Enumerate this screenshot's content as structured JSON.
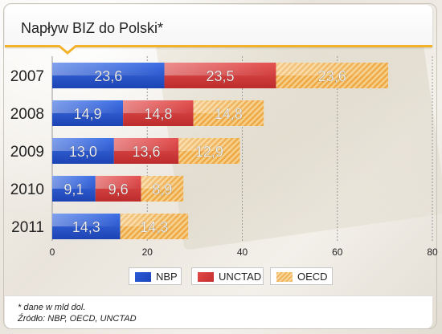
{
  "title": "Napływ BIZ do Polski*",
  "footnote": "* dane w mld dol.",
  "source": "Źródło: NBP, OECD, UNCTAD",
  "colors": {
    "NBP": "#2a5bd7",
    "UNCTAD": "#d83c3c",
    "OECD": "#f0b35a",
    "accent": "#f2b22a"
  },
  "chart_data": {
    "type": "bar",
    "orientation": "horizontal",
    "stacked": true,
    "categories": [
      "2007",
      "2008",
      "2009",
      "2010",
      "2011"
    ],
    "series": [
      {
        "name": "NBP",
        "values": [
          23.6,
          14.9,
          13.0,
          9.1,
          14.3
        ],
        "labels": [
          "23,6",
          "14,9",
          "13,0",
          "9,1",
          "14,3"
        ]
      },
      {
        "name": "UNCTAD",
        "values": [
          23.5,
          14.8,
          13.6,
          9.6,
          null
        ],
        "labels": [
          "23,5",
          "14,8",
          "13,6",
          "9,6",
          ""
        ]
      },
      {
        "name": "OECD",
        "values": [
          23.6,
          14.8,
          12.9,
          8.9,
          14.3
        ],
        "labels": [
          "23,6",
          "14,8",
          "12,9",
          "8,9",
          "14,3"
        ]
      }
    ],
    "xlim": [
      0,
      80
    ],
    "xticks": [
      "0",
      "20",
      "40",
      "60",
      "80"
    ],
    "grid": true,
    "legend": "bottom"
  }
}
